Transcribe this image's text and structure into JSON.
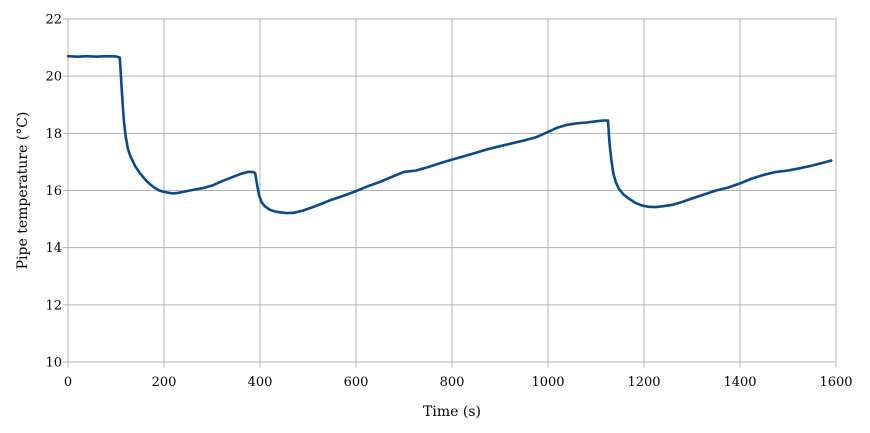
{
  "chart_data": {
    "type": "line",
    "title": "",
    "xlabel": "Time (s)",
    "ylabel": "Pipe temperature (°C)",
    "xlim": [
      0,
      1600
    ],
    "ylim": [
      10,
      22
    ],
    "xticks": [
      0,
      200,
      400,
      600,
      800,
      1000,
      1200,
      1400,
      1600
    ],
    "yticks": [
      10,
      12,
      14,
      16,
      18,
      20,
      22
    ],
    "grid": true,
    "legend": "none",
    "series": [
      {
        "color": "#0a4a8a",
        "x": [
          0,
          20,
          40,
          60,
          80,
          100,
          108,
          112,
          116,
          120,
          125,
          130,
          140,
          150,
          160,
          170,
          180,
          190,
          200,
          210,
          220,
          230,
          240,
          260,
          280,
          300,
          320,
          340,
          360,
          375,
          385,
          390,
          394,
          398,
          403,
          410,
          420,
          430,
          440,
          455,
          470,
          490,
          510,
          530,
          550,
          575,
          600,
          625,
          650,
          675,
          700,
          725,
          750,
          775,
          800,
          825,
          850,
          875,
          900,
          925,
          950,
          975,
          1000,
          1020,
          1040,
          1060,
          1080,
          1100,
          1115,
          1125,
          1128,
          1132,
          1136,
          1141,
          1148,
          1158,
          1170,
          1182,
          1195,
          1210,
          1225,
          1240,
          1260,
          1280,
          1300,
          1325,
          1350,
          1375,
          1400,
          1425,
          1450,
          1475,
          1500,
          1525,
          1550,
          1575,
          1590
        ],
        "y": [
          20.7,
          20.68,
          20.7,
          20.68,
          20.7,
          20.69,
          20.65,
          19.5,
          18.5,
          17.9,
          17.45,
          17.2,
          16.85,
          16.6,
          16.4,
          16.23,
          16.1,
          16.0,
          15.95,
          15.92,
          15.9,
          15.92,
          15.95,
          16.02,
          16.08,
          16.17,
          16.32,
          16.45,
          16.58,
          16.65,
          16.65,
          16.6,
          16.2,
          15.85,
          15.6,
          15.45,
          15.33,
          15.27,
          15.24,
          15.21,
          15.22,
          15.3,
          15.42,
          15.55,
          15.68,
          15.82,
          15.98,
          16.15,
          16.3,
          16.48,
          16.65,
          16.7,
          16.82,
          16.95,
          17.08,
          17.2,
          17.32,
          17.45,
          17.55,
          17.65,
          17.75,
          17.86,
          18.05,
          18.2,
          18.3,
          18.35,
          18.38,
          18.42,
          18.45,
          18.45,
          17.7,
          17.05,
          16.6,
          16.3,
          16.05,
          15.85,
          15.7,
          15.57,
          15.48,
          15.43,
          15.42,
          15.45,
          15.5,
          15.6,
          15.72,
          15.86,
          16.0,
          16.1,
          16.25,
          16.42,
          16.55,
          16.65,
          16.7,
          16.78,
          16.87,
          16.98,
          17.05
        ]
      }
    ]
  }
}
